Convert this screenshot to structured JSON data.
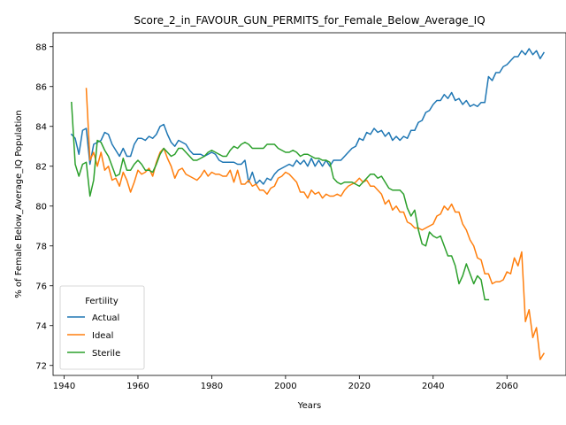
{
  "chart_data": {
    "type": "line",
    "title": "Score_2_in_FAVOUR_GUN_PERMITS_for_Female_Below_Average_IQ",
    "xlabel": "Years",
    "ylabel": "% of Female Below_Average_IQ Population",
    "xlim": [
      1937,
      2076
    ],
    "ylim": [
      71.5,
      88.7
    ],
    "xticks": [
      1940,
      1960,
      1980,
      2000,
      2020,
      2040,
      2060
    ],
    "yticks": [
      72,
      74,
      76,
      78,
      80,
      82,
      84,
      86,
      88
    ],
    "legend": {
      "title": "Fertility",
      "placement": "lower-left"
    },
    "grid": false,
    "series": [
      {
        "name": "Actual",
        "color": "#1f77b4",
        "x": [
          1942,
          1943,
          1944,
          1945,
          1946,
          1947,
          1948,
          1949,
          1950,
          1951,
          1952,
          1953,
          1954,
          1955,
          1956,
          1957,
          1958,
          1959,
          1960,
          1961,
          1962,
          1963,
          1964,
          1965,
          1966,
          1967,
          1968,
          1969,
          1970,
          1971,
          1972,
          1973,
          1974,
          1975,
          1976,
          1977,
          1978,
          1979,
          1980,
          1981,
          1982,
          1983,
          1984,
          1985,
          1986,
          1987,
          1988,
          1989,
          1990,
          1991,
          1992,
          1993,
          1994,
          1995,
          1996,
          1997,
          1998,
          1999,
          2000,
          2001,
          2002,
          2003,
          2004,
          2005,
          2006,
          2007,
          2008,
          2009,
          2010,
          2011,
          2012,
          2013,
          2014,
          2015,
          2016,
          2017,
          2018,
          2019,
          2020,
          2021,
          2022,
          2023,
          2024,
          2025,
          2026,
          2027,
          2028,
          2029,
          2030,
          2031,
          2032,
          2033,
          2034,
          2035,
          2036,
          2037,
          2038,
          2039,
          2040,
          2041,
          2042,
          2043,
          2044,
          2045,
          2046,
          2047,
          2048,
          2049,
          2050,
          2051,
          2052,
          2053,
          2054,
          2055,
          2056,
          2057,
          2058,
          2059,
          2060,
          2061,
          2062,
          2063,
          2064,
          2065,
          2066,
          2067,
          2068,
          2069,
          2070
        ],
        "y": [
          83.6,
          83.4,
          82.6,
          83.8,
          83.9,
          82.1,
          83.1,
          83.2,
          83.3,
          83.7,
          83.6,
          83.1,
          82.8,
          82.5,
          82.9,
          82.5,
          82.5,
          83.1,
          83.4,
          83.4,
          83.3,
          83.5,
          83.4,
          83.6,
          84.0,
          84.1,
          83.6,
          83.2,
          83.0,
          83.3,
          83.2,
          83.1,
          82.8,
          82.6,
          82.6,
          82.6,
          82.5,
          82.6,
          82.7,
          82.6,
          82.3,
          82.2,
          82.2,
          82.2,
          82.2,
          82.1,
          82.1,
          82.3,
          81.2,
          81.7,
          81.1,
          81.3,
          81.1,
          81.4,
          81.3,
          81.6,
          81.8,
          81.9,
          82.0,
          82.1,
          82.0,
          82.3,
          82.1,
          82.3,
          82.0,
          82.4,
          82.0,
          82.3,
          82.0,
          82.3,
          82.0,
          82.3,
          82.3,
          82.3,
          82.5,
          82.7,
          82.9,
          83.0,
          83.4,
          83.3,
          83.7,
          83.6,
          83.9,
          83.7,
          83.8,
          83.5,
          83.7,
          83.3,
          83.5,
          83.3,
          83.5,
          83.4,
          83.8,
          83.8,
          84.2,
          84.3,
          84.7,
          84.8,
          85.1,
          85.3,
          85.3,
          85.6,
          85.4,
          85.7,
          85.3,
          85.4,
          85.1,
          85.3,
          85.0,
          85.1,
          85.0,
          85.2,
          85.2,
          86.5,
          86.3,
          86.7,
          86.7,
          87.0,
          87.1,
          87.3,
          87.5,
          87.5,
          87.8,
          87.6,
          87.9,
          87.6,
          87.8,
          87.4,
          87.7
        ]
      },
      {
        "name": "Ideal",
        "color": "#ff7f0e",
        "x": [
          1946,
          1947,
          1948,
          1949,
          1950,
          1951,
          1952,
          1953,
          1954,
          1955,
          1956,
          1957,
          1958,
          1959,
          1960,
          1961,
          1962,
          1963,
          1964,
          1965,
          1966,
          1967,
          1968,
          1969,
          1970,
          1971,
          1972,
          1973,
          1974,
          1975,
          1976,
          1977,
          1978,
          1979,
          1980,
          1981,
          1982,
          1983,
          1984,
          1985,
          1986,
          1987,
          1988,
          1989,
          1990,
          1991,
          1992,
          1993,
          1994,
          1995,
          1996,
          1997,
          1998,
          1999,
          2000,
          2001,
          2002,
          2003,
          2004,
          2005,
          2006,
          2007,
          2008,
          2009,
          2010,
          2011,
          2012,
          2013,
          2014,
          2015,
          2016,
          2017,
          2018,
          2019,
          2020,
          2021,
          2022,
          2023,
          2024,
          2025,
          2026,
          2027,
          2028,
          2029,
          2030,
          2031,
          2032,
          2033,
          2034,
          2035,
          2036,
          2037,
          2038,
          2039,
          2040,
          2041,
          2042,
          2043,
          2044,
          2045,
          2046,
          2047,
          2048,
          2049,
          2050,
          2051,
          2052,
          2053,
          2054,
          2055,
          2056,
          2057,
          2058,
          2059,
          2060,
          2061,
          2062,
          2063,
          2064,
          2065,
          2066,
          2067,
          2068,
          2069,
          2070
        ],
        "y": [
          85.9,
          82.3,
          82.7,
          82.0,
          82.7,
          81.8,
          82.0,
          81.3,
          81.4,
          81.0,
          81.7,
          81.3,
          80.7,
          81.2,
          81.8,
          81.6,
          81.7,
          81.9,
          81.5,
          82.2,
          82.7,
          82.9,
          82.4,
          82.0,
          81.4,
          81.8,
          81.9,
          81.6,
          81.5,
          81.4,
          81.3,
          81.5,
          81.8,
          81.5,
          81.7,
          81.6,
          81.6,
          81.5,
          81.5,
          81.8,
          81.2,
          81.8,
          81.1,
          81.1,
          81.3,
          81.0,
          81.1,
          80.8,
          80.8,
          80.6,
          80.9,
          81.0,
          81.4,
          81.5,
          81.7,
          81.6,
          81.4,
          81.2,
          80.7,
          80.7,
          80.4,
          80.8,
          80.6,
          80.7,
          80.4,
          80.6,
          80.5,
          80.5,
          80.6,
          80.5,
          80.8,
          81.0,
          81.1,
          81.2,
          81.4,
          81.2,
          81.3,
          81.0,
          81.0,
          80.8,
          80.6,
          80.1,
          80.3,
          79.8,
          80.0,
          79.7,
          79.7,
          79.2,
          79.1,
          78.9,
          78.9,
          78.8,
          78.9,
          79.0,
          79.1,
          79.5,
          79.6,
          80.0,
          79.8,
          80.1,
          79.7,
          79.7,
          79.1,
          78.8,
          78.3,
          78.0,
          77.4,
          77.3,
          76.6,
          76.6,
          76.1,
          76.2,
          76.2,
          76.3,
          76.7,
          76.6,
          77.4,
          77.0,
          77.7,
          74.2,
          74.8,
          73.4,
          73.9,
          72.3,
          72.6
        ]
      },
      {
        "name": "Sterile",
        "color": "#2ca02c",
        "x": [
          1942,
          1943,
          1944,
          1945,
          1946,
          1947,
          1948,
          1949,
          1950,
          1951,
          1952,
          1953,
          1954,
          1955,
          1956,
          1957,
          1958,
          1959,
          1960,
          1961,
          1962,
          1963,
          1964,
          1965,
          1966,
          1967,
          1968,
          1969,
          1970,
          1971,
          1972,
          1973,
          1974,
          1975,
          1976,
          1977,
          1978,
          1979,
          1980,
          1981,
          1982,
          1983,
          1984,
          1985,
          1986,
          1987,
          1988,
          1989,
          1990,
          1991,
          1992,
          1993,
          1994,
          1995,
          1996,
          1997,
          1998,
          1999,
          2000,
          2001,
          2002,
          2003,
          2004,
          2005,
          2006,
          2007,
          2008,
          2009,
          2010,
          2011,
          2012,
          2013,
          2014,
          2015,
          2016,
          2017,
          2018,
          2019,
          2020,
          2021,
          2022,
          2023,
          2024,
          2025,
          2026,
          2027,
          2028,
          2029,
          2030,
          2031,
          2032,
          2033,
          2034,
          2035,
          2036,
          2037,
          2038,
          2039,
          2040,
          2041,
          2042,
          2043,
          2044,
          2045,
          2046,
          2047,
          2048,
          2049,
          2050,
          2051,
          2052,
          2053,
          2054,
          2055
        ],
        "y": [
          85.2,
          82.1,
          81.5,
          82.1,
          82.2,
          80.5,
          81.3,
          83.3,
          83.2,
          82.8,
          82.5,
          82.0,
          81.5,
          81.6,
          82.4,
          81.8,
          81.8,
          82.1,
          82.3,
          82.1,
          81.8,
          81.8,
          81.7,
          82.1,
          82.6,
          82.9,
          82.7,
          82.5,
          82.6,
          82.9,
          82.9,
          82.7,
          82.5,
          82.3,
          82.3,
          82.4,
          82.5,
          82.7,
          82.8,
          82.7,
          82.6,
          82.5,
          82.5,
          82.8,
          83.0,
          82.9,
          83.1,
          83.2,
          83.1,
          82.9,
          82.9,
          82.9,
          82.9,
          83.1,
          83.1,
          83.1,
          82.9,
          82.8,
          82.7,
          82.7,
          82.8,
          82.7,
          82.5,
          82.6,
          82.6,
          82.5,
          82.4,
          82.4,
          82.3,
          82.3,
          82.2,
          81.4,
          81.2,
          81.1,
          81.2,
          81.2,
          81.2,
          81.1,
          81.0,
          81.2,
          81.4,
          81.6,
          81.6,
          81.4,
          81.5,
          81.2,
          80.9,
          80.8,
          80.8,
          80.8,
          80.6,
          79.9,
          79.5,
          79.8,
          78.8,
          78.1,
          78.0,
          78.7,
          78.5,
          78.4,
          78.5,
          78.0,
          77.5,
          77.5,
          77.0,
          76.1,
          76.5,
          77.1,
          76.6,
          76.1,
          76.5,
          76.3,
          75.3,
          75.3
        ]
      }
    ]
  }
}
